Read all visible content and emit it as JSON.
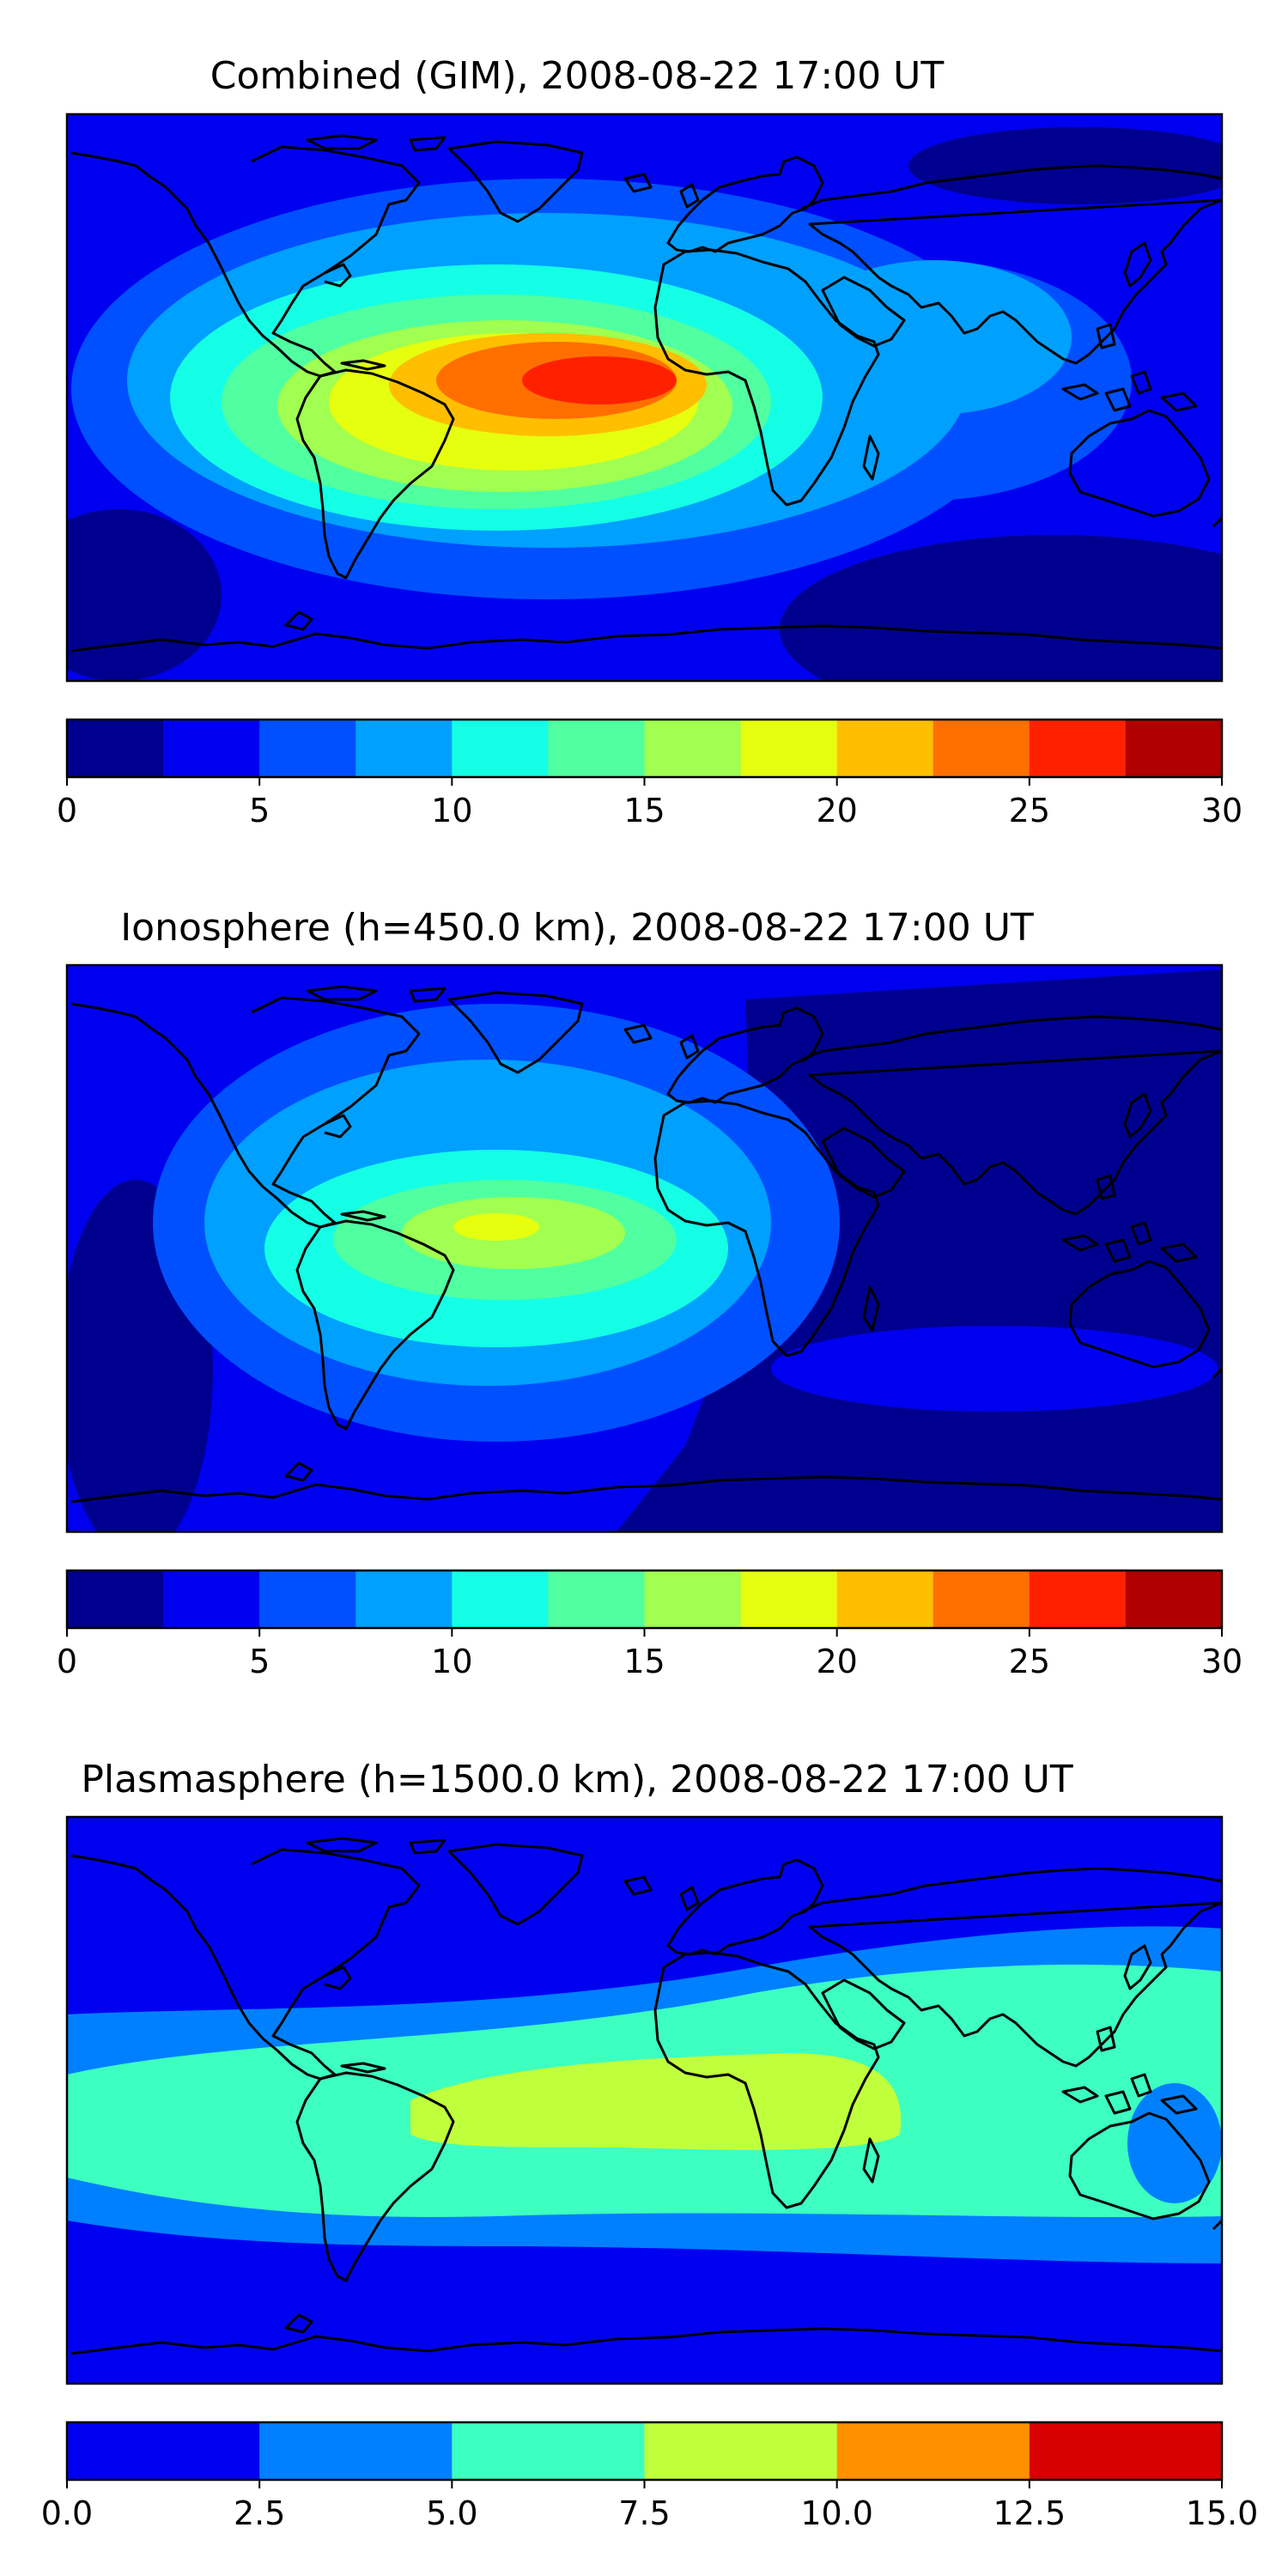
{
  "panels": [
    {
      "title": "Combined (GIM), 2008-08-22 17:00 UT",
      "colorbar": {
        "tick_labels": [
          "0",
          "5",
          "10",
          "15",
          "20",
          "25",
          "30"
        ],
        "colors": [
          "#00008f",
          "#0000f0",
          "#0050ff",
          "#00a0ff",
          "#14ffe6",
          "#50ffa0",
          "#a0ff50",
          "#e6ff0f",
          "#ffbf00",
          "#ff6f00",
          "#ff2000",
          "#b00000"
        ]
      }
    },
    {
      "title": "Ionosphere  (h=450.0 km), 2008-08-22 17:00 UT",
      "colorbar": {
        "tick_labels": [
          "0",
          "5",
          "10",
          "15",
          "20",
          "25",
          "30"
        ],
        "colors": [
          "#00008f",
          "#0000f0",
          "#0050ff",
          "#00a0ff",
          "#14ffe6",
          "#50ffa0",
          "#a0ff50",
          "#e6ff0f",
          "#ffbf00",
          "#ff6f00",
          "#ff2000",
          "#b00000"
        ]
      }
    },
    {
      "title": "Plasmasphere (h=1500.0 km), 2008-08-22 17:00 UT",
      "colorbar": {
        "tick_labels": [
          "0.0",
          "2.5",
          "5.0",
          "7.5",
          "10.0",
          "12.5",
          "15.0"
        ],
        "colors": [
          "#0000f0",
          "#0080ff",
          "#3cffc0",
          "#c0ff3c",
          "#ff9000",
          "#d80000"
        ]
      }
    }
  ]
}
